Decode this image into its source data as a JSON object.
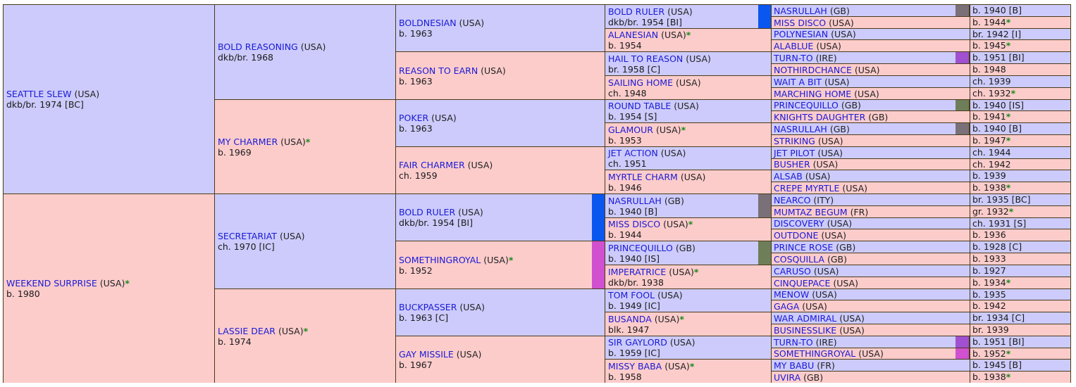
{
  "g1": [
    {
      "name": "SEATTLE SLEW",
      "country": "(USA)",
      "star": "",
      "detail": "dkb/br. 1974 [BC]"
    },
    {
      "name": "WEEKEND SURPRISE",
      "country": "(USA)",
      "star": "*",
      "detail": "b. 1980"
    }
  ],
  "g2": [
    {
      "name": "BOLD REASONING",
      "country": "(USA)",
      "star": "",
      "detail": "dkb/br. 1968"
    },
    {
      "name": "MY CHARMER",
      "country": "(USA)",
      "star": "*",
      "detail": "b. 1969"
    },
    {
      "name": "SECRETARIAT",
      "country": "(USA)",
      "star": "",
      "detail": "ch. 1970 [IC]"
    },
    {
      "name": "LASSIE DEAR",
      "country": "(USA)",
      "star": "*",
      "detail": "b. 1974"
    }
  ],
  "g3": [
    {
      "name": "BOLDNESIAN",
      "country": "(USA)",
      "star": "",
      "detail": "b. 1963"
    },
    {
      "name": "REASON TO EARN",
      "country": "(USA)",
      "star": "",
      "detail": "b. 1963"
    },
    {
      "name": "POKER",
      "country": "(USA)",
      "star": "",
      "detail": "b. 1963"
    },
    {
      "name": "FAIR CHARMER",
      "country": "(USA)",
      "star": "",
      "detail": "ch. 1959"
    },
    {
      "name": "BOLD RULER",
      "country": "(USA)",
      "star": "",
      "detail": "dkb/br. 1954 [BI]",
      "mark": "#0a57f0"
    },
    {
      "name": "SOMETHINGROYAL",
      "country": "(USA)",
      "star": "*",
      "detail": "b. 1952",
      "mark": "#d050d0"
    },
    {
      "name": "BUCKPASSER",
      "country": "(USA)",
      "star": "",
      "detail": "b. 1963 [C]"
    },
    {
      "name": "GAY MISSILE",
      "country": "(USA)",
      "star": "",
      "detail": "b. 1967"
    }
  ],
  "g4": [
    {
      "name": "BOLD RULER",
      "country": "(USA)",
      "star": "",
      "detail": "dkb/br. 1954 [BI]",
      "mark": "#0a57f0"
    },
    {
      "name": "ALANESIAN",
      "country": "(USA)",
      "star": "*",
      "detail": "b. 1954"
    },
    {
      "name": "HAIL TO REASON",
      "country": "(USA)",
      "star": "",
      "detail": "br. 1958 [C]"
    },
    {
      "name": "SAILING HOME",
      "country": "(USA)",
      "star": "",
      "detail": "ch. 1948"
    },
    {
      "name": "ROUND TABLE",
      "country": "(USA)",
      "star": "",
      "detail": "b. 1954 [S]"
    },
    {
      "name": "GLAMOUR",
      "country": "(USA)",
      "star": "*",
      "detail": "b. 1953"
    },
    {
      "name": "JET ACTION",
      "country": "(USA)",
      "star": "",
      "detail": "ch. 1951"
    },
    {
      "name": "MYRTLE CHARM",
      "country": "(USA)",
      "star": "",
      "detail": "b. 1946"
    },
    {
      "name": "NASRULLAH",
      "country": "(GB)",
      "star": "",
      "detail": "b. 1940 [B]",
      "mark": "#7a7078"
    },
    {
      "name": "MISS DISCO",
      "country": "(USA)",
      "star": "*",
      "detail": "b. 1944"
    },
    {
      "name": "PRINCEQUILLO",
      "country": "(GB)",
      "star": "",
      "detail": "b. 1940 [IS]",
      "mark": "#6e7e58"
    },
    {
      "name": "IMPERATRICE",
      "country": "(USA)",
      "star": "*",
      "detail": "dkb/br. 1938"
    },
    {
      "name": "TOM FOOL",
      "country": "(USA)",
      "star": "",
      "detail": "b. 1949 [IC]"
    },
    {
      "name": "BUSANDA",
      "country": "(USA)",
      "star": "*",
      "detail": "blk. 1947"
    },
    {
      "name": "SIR GAYLORD",
      "country": "(USA)",
      "star": "",
      "detail": "b. 1959 [IC]"
    },
    {
      "name": "MISSY BABA",
      "country": "(USA)",
      "star": "*",
      "detail": "b. 1958"
    }
  ],
  "g5": [
    {
      "name": "NASRULLAH",
      "country": "(GB)",
      "star": "",
      "detail": "b. 1940 [B]",
      "mark": "#7a7078"
    },
    {
      "name": "MISS DISCO",
      "country": "(USA)",
      "star": "",
      "detail": "b. 1944 *"
    },
    {
      "name": "POLYNESIAN",
      "country": "(USA)",
      "star": "",
      "detail": "br. 1942 [I]"
    },
    {
      "name": "ALABLUE",
      "country": "(USA)",
      "star": "",
      "detail": "b. 1945 *"
    },
    {
      "name": "TURN-TO",
      "country": "(IRE)",
      "star": "",
      "detail": "b. 1951 [BI]",
      "mark": "#a050d0"
    },
    {
      "name": "NOTHIRDCHANCE",
      "country": "(USA)",
      "star": "",
      "detail": "b. 1948"
    },
    {
      "name": "WAIT A BIT",
      "country": "(USA)",
      "star": "",
      "detail": "ch. 1939"
    },
    {
      "name": "MARCHING HOME",
      "country": "(USA)",
      "star": "",
      "detail": "ch. 1932 *"
    },
    {
      "name": "PRINCEQUILLO",
      "country": "(GB)",
      "star": "",
      "detail": "b. 1940 [IS]",
      "mark": "#6e7e58"
    },
    {
      "name": "KNIGHTS DAUGHTER",
      "country": "(GB)",
      "star": "",
      "detail": "b. 1941 *"
    },
    {
      "name": "NASRULLAH",
      "country": "(GB)",
      "star": "",
      "detail": "b. 1940 [B]",
      "mark": "#7a7078"
    },
    {
      "name": "STRIKING",
      "country": "(USA)",
      "star": "",
      "detail": "b. 1947 *"
    },
    {
      "name": "JET PILOT",
      "country": "(USA)",
      "star": "",
      "detail": "ch. 1944"
    },
    {
      "name": "BUSHER",
      "country": "(USA)",
      "star": "",
      "detail": "ch. 1942"
    },
    {
      "name": "ALSAB",
      "country": "(USA)",
      "star": "",
      "detail": "b. 1939"
    },
    {
      "name": "CREPE MYRTLE",
      "country": "(USA)",
      "star": "",
      "detail": "b. 1938 *"
    },
    {
      "name": "NEARCO",
      "country": "(ITY)",
      "star": "",
      "detail": "br. 1935 [BC]"
    },
    {
      "name": "MUMTAZ BEGUM",
      "country": "(FR)",
      "star": "",
      "detail": "gr. 1932 *"
    },
    {
      "name": "DISCOVERY",
      "country": "(USA)",
      "star": "",
      "detail": "ch. 1931 [S]"
    },
    {
      "name": "OUTDONE",
      "country": "(USA)",
      "star": "",
      "detail": "b. 1936"
    },
    {
      "name": "PRINCE ROSE",
      "country": "(GB)",
      "star": "",
      "detail": "b. 1928 [C]"
    },
    {
      "name": "COSQUILLA",
      "country": "(GB)",
      "star": "",
      "detail": "b. 1933"
    },
    {
      "name": "CARUSO",
      "country": "(USA)",
      "star": "",
      "detail": "b. 1927"
    },
    {
      "name": "CINQUEPACE",
      "country": "(USA)",
      "star": "",
      "detail": "b. 1934 *"
    },
    {
      "name": "MENOW",
      "country": "(USA)",
      "star": "",
      "detail": "b. 1935"
    },
    {
      "name": "GAGA",
      "country": "(USA)",
      "star": "",
      "detail": "b. 1942"
    },
    {
      "name": "WAR ADMIRAL",
      "country": "(USA)",
      "star": "",
      "detail": "br. 1934 [C]"
    },
    {
      "name": "BUSINESSLIKE",
      "country": "(USA)",
      "star": "",
      "detail": "br. 1939"
    },
    {
      "name": "TURN-TO",
      "country": "(IRE)",
      "star": "",
      "detail": "b. 1951 [BI]",
      "mark": "#a050d0"
    },
    {
      "name": "SOMETHINGROYAL",
      "country": "(USA)",
      "star": "",
      "detail": "b. 1952 *",
      "mark": "#d050d0"
    },
    {
      "name": "MY BABU",
      "country": "(FR)",
      "star": "",
      "detail": "b. 1945 [B]"
    },
    {
      "name": "UVIRA",
      "country": "(GB)",
      "star": "",
      "detail": "b. 1938 *"
    }
  ],
  "colors": {
    "male": "#cccbfb",
    "female": "#fccccb",
    "name_link": "#1a1ad6",
    "star": "#1a8a1a",
    "border": "#4a3a1a"
  }
}
